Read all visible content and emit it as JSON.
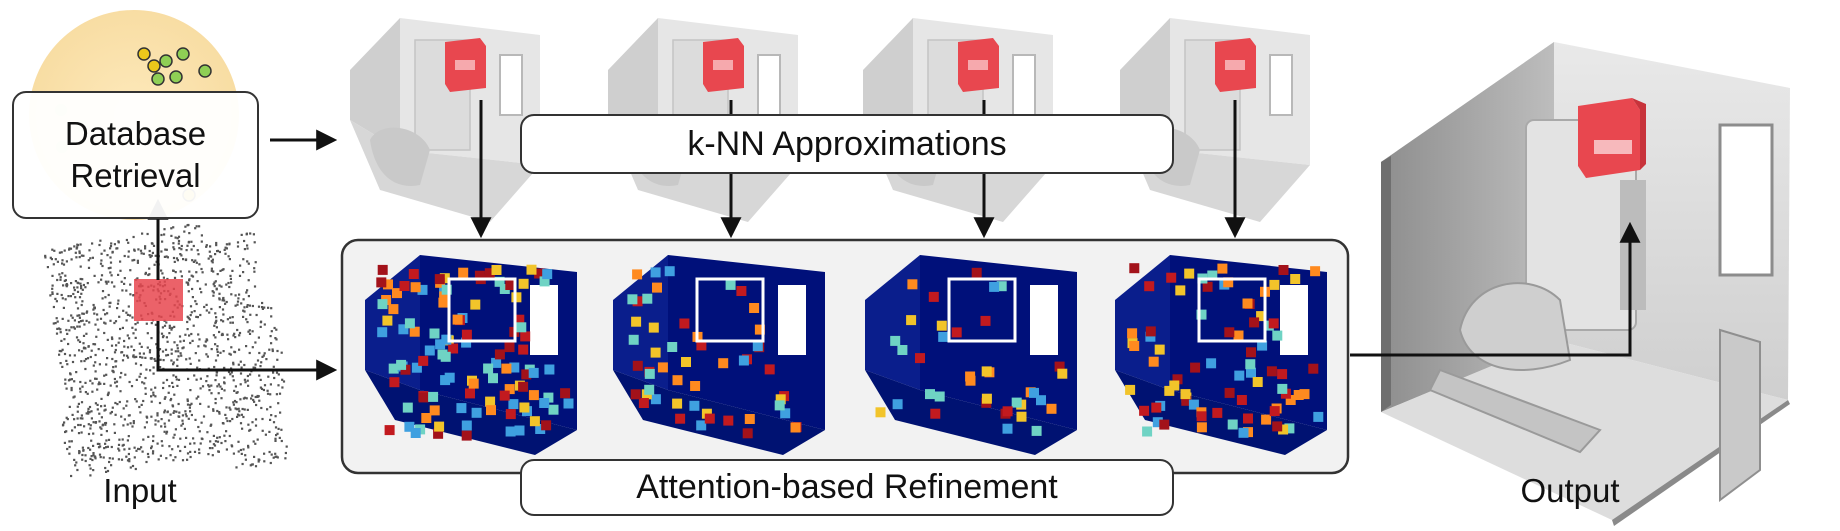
{
  "labels": {
    "database_retrieval_line1": "Database",
    "database_retrieval_line2": "Retrieval",
    "knn": "k-NN Approximations",
    "refinement": "Attention-based Refinement",
    "input": "Input",
    "output": "Output"
  },
  "colors": {
    "highlight_red": "#e8474f",
    "heatmap_blue": "#00107a",
    "database_circle": "#fbe5b2",
    "dot_green": "#8fcf55",
    "dot_yellow": "#ecc81b"
  }
}
